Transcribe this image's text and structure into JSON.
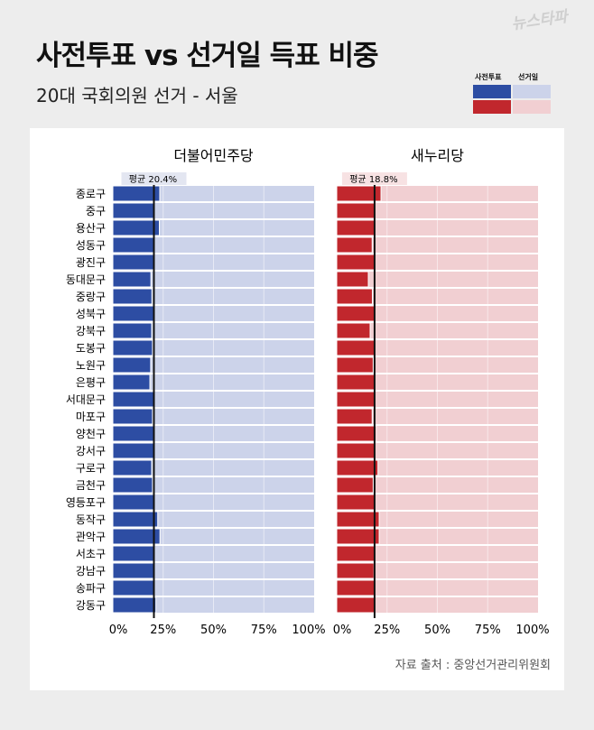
{
  "header": {
    "title": "사전투표 vs 선거일 득표 비중",
    "subtitle": "20대 국회의원 선거 - 서울",
    "logo": "뉴스타파"
  },
  "legend": {
    "early": "사전투표",
    "election_day": "선거일"
  },
  "colors": {
    "blue": "#2d4da3",
    "blue_light": "#ccd3ea",
    "red": "#c1272d",
    "red_light": "#f1cfd2",
    "background": "#ededed"
  },
  "source": "자료 출처 : 중앙선거관리위원회",
  "chart_data": [
    {
      "type": "bar",
      "title": "더불어민주당",
      "average_label": "평균 20.4%",
      "average": 20.4,
      "categories": [
        "종로구",
        "중구",
        "용산구",
        "성동구",
        "광진구",
        "동대문구",
        "중랑구",
        "성북구",
        "강북구",
        "도봉구",
        "노원구",
        "은평구",
        "서대문구",
        "마포구",
        "양천구",
        "강서구",
        "구로구",
        "금천구",
        "영등포구",
        "동작구",
        "관악구",
        "서초구",
        "강남구",
        "송파구",
        "강동구"
      ],
      "series": [
        {
          "name": "사전투표",
          "values": [
            23.3,
            20.2,
            23.1,
            20.2,
            20.2,
            18.9,
            19.4,
            20.2,
            19.3,
            19.7,
            18.8,
            18.4,
            20.2,
            19.7,
            20.2,
            20.2,
            19.3,
            19.7,
            20.2,
            22.3,
            23.4,
            20.2,
            20.5,
            20.5,
            21.4
          ]
        }
      ],
      "xlim": [
        0,
        100
      ],
      "xticks": [
        "0%",
        "25%",
        "50%",
        "75%",
        "100%"
      ]
    },
    {
      "type": "bar",
      "title": "새누리당",
      "average_label": "평균 18.8%",
      "average": 18.8,
      "categories": [
        "종로구",
        "중구",
        "용산구",
        "성동구",
        "광진구",
        "동대문구",
        "중랑구",
        "성북구",
        "강북구",
        "도봉구",
        "노원구",
        "은평구",
        "서대문구",
        "마포구",
        "양천구",
        "강서구",
        "구로구",
        "금천구",
        "영등포구",
        "동작구",
        "관악구",
        "서초구",
        "강남구",
        "송파구",
        "강동구"
      ],
      "series": [
        {
          "name": "사전투표",
          "values": [
            22.0,
            18.8,
            18.8,
            17.6,
            18.8,
            15.7,
            17.7,
            18.8,
            16.6,
            18.8,
            18.1,
            18.8,
            18.8,
            17.6,
            19.6,
            18.8,
            20.5,
            18.1,
            18.8,
            21.1,
            21.1,
            18.8,
            18.5,
            18.8,
            18.8
          ]
        }
      ],
      "xlim": [
        0,
        100
      ],
      "xticks": [
        "0%",
        "25%",
        "50%",
        "75%",
        "100%"
      ]
    }
  ]
}
